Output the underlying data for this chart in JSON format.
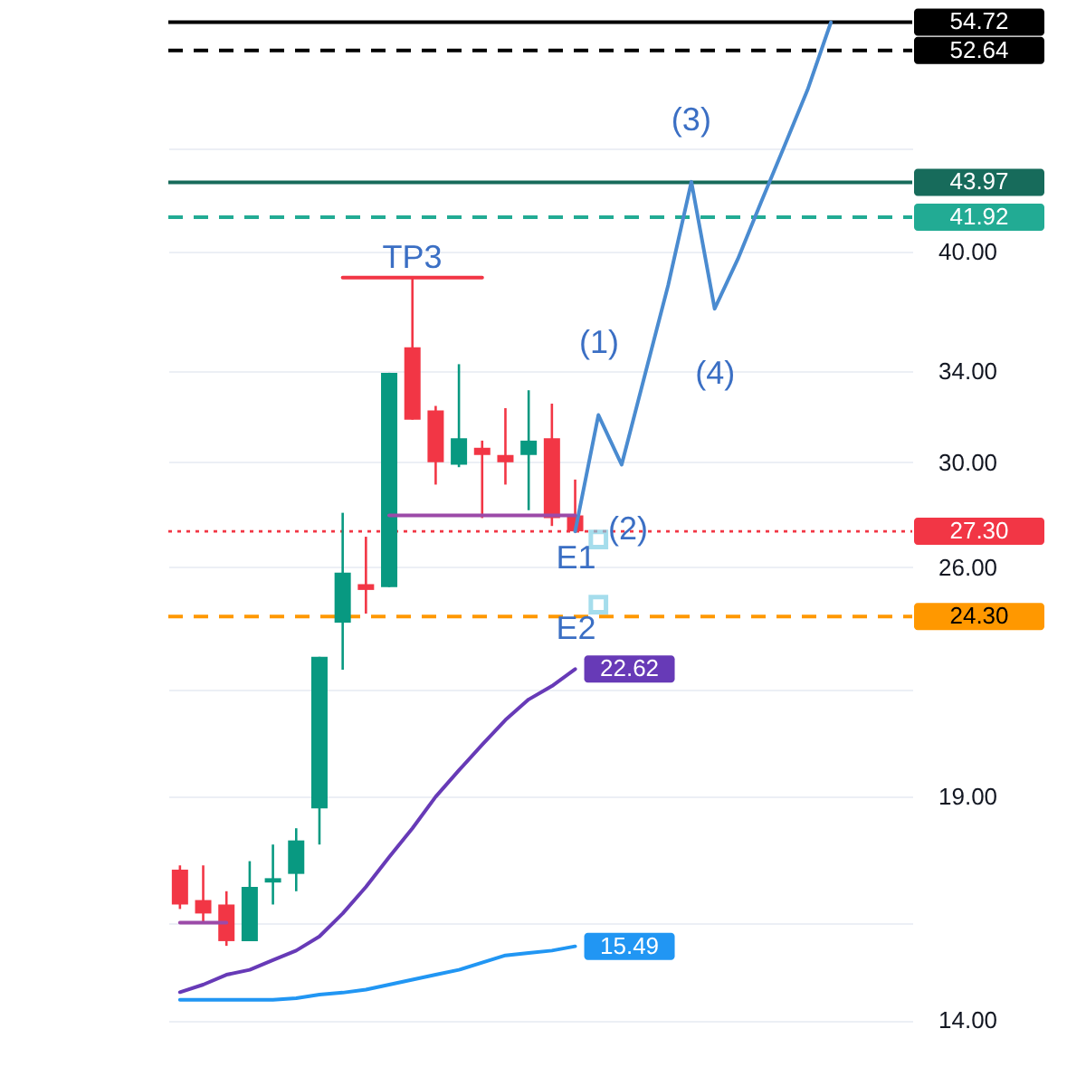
{
  "chart_data": {
    "type": "candlestick",
    "categories": [
      null,
      null,
      null,
      null,
      null,
      null,
      null,
      null,
      null,
      null,
      null,
      null,
      null,
      null,
      null,
      null,
      null,
      null,
      null,
      null,
      null,
      null,
      null,
      null,
      null,
      null,
      null,
      null,
      null,
      null,
      null,
      null
    ],
    "ohlc": [
      [
        17.2,
        17.3,
        16.3,
        16.4
      ],
      [
        16.5,
        17.3,
        16.0,
        16.2
      ],
      [
        16.4,
        16.7,
        15.5,
        15.6
      ],
      [
        15.6,
        17.4,
        15.6,
        16.8
      ],
      [
        16.9,
        17.8,
        16.4,
        17.0
      ],
      [
        17.1,
        18.2,
        16.7,
        17.9
      ],
      [
        18.7,
        23.0,
        17.8,
        23.0
      ],
      [
        24.1,
        28.0,
        22.6,
        25.8
      ],
      [
        25.4,
        27.1,
        24.4,
        25.2
      ],
      [
        25.3,
        33.9,
        25.3,
        33.9
      ],
      [
        35.1,
        38.6,
        31.8,
        31.8
      ],
      [
        32.2,
        32.4,
        29.1,
        30.0
      ],
      [
        29.9,
        34.3,
        29.8,
        31.0
      ],
      [
        30.6,
        30.9,
        27.8,
        30.3
      ],
      [
        30.3,
        32.3,
        29.1,
        30.0
      ],
      [
        30.3,
        33.1,
        28.1,
        30.9
      ],
      [
        31.0,
        32.5,
        27.5,
        27.8
      ],
      [
        27.9,
        29.3,
        27.3,
        27.3
      ],
      null,
      null,
      null,
      null,
      null,
      null,
      null,
      null,
      null,
      null,
      null,
      null,
      null,
      null
    ],
    "colors": [
      "#f23645",
      "#f23645",
      "#f23645",
      "#089981",
      "#089981",
      "#089981",
      "#089981",
      "#089981",
      "#f23645",
      "#089981",
      "#f23645",
      "#f23645",
      "#089981",
      "#f23645",
      "#f23645",
      "#089981",
      "#f23645",
      "#f23645",
      null,
      null,
      null,
      null,
      null,
      null,
      null,
      null,
      null,
      null,
      null,
      null,
      null,
      null
    ],
    "ylim": [
      12.8,
      56.4
    ],
    "yticks": [
      {
        "value": 14,
        "label": "14.00"
      },
      {
        "value": 16,
        "label": null
      },
      {
        "value": 19,
        "label": "19.00"
      },
      {
        "value": 22,
        "label": null
      },
      {
        "value": 26,
        "label": "26.00"
      },
      {
        "value": 30,
        "label": "30.00"
      },
      {
        "value": 34,
        "label": "34.00"
      },
      {
        "value": 40,
        "label": "40.00"
      },
      {
        "value": 46,
        "label": null
      }
    ],
    "log": true,
    "grid": "y",
    "tick_labels": "y",
    "series": [
      {
        "type": "line",
        "color": "#673ab7",
        "values": [
          14.55,
          14.7,
          14.9,
          15.0,
          15.2,
          15.4,
          15.7,
          16.2,
          16.8,
          17.5,
          18.2,
          19.0,
          19.7,
          20.4,
          21.1,
          21.7,
          22.1,
          22.62,
          null,
          null,
          null,
          null,
          null,
          null,
          null,
          null,
          null,
          null,
          null,
          null,
          null,
          null
        ],
        "value_labels": [
          null,
          null,
          null,
          null,
          null,
          null,
          null,
          null,
          null,
          null,
          null,
          null,
          null,
          null,
          null,
          null,
          null,
          "22.62",
          null,
          null,
          null,
          null,
          null,
          null,
          null,
          null,
          null,
          null,
          null,
          null,
          null,
          null
        ]
      },
      {
        "type": "line",
        "color": "#2196f3",
        "values": [
          14.4,
          14.4,
          14.4,
          14.4,
          14.4,
          14.43,
          14.5,
          14.54,
          14.6,
          14.7,
          14.8,
          14.9,
          15.0,
          15.15,
          15.3,
          15.35,
          15.4,
          15.49,
          null,
          null,
          null,
          null,
          null,
          null,
          null,
          null,
          null,
          null,
          null,
          null,
          null,
          null
        ],
        "value_labels": [
          null,
          null,
          null,
          null,
          null,
          null,
          null,
          null,
          null,
          null,
          null,
          null,
          null,
          null,
          null,
          null,
          null,
          "15.49",
          null,
          null,
          null,
          null,
          null,
          null,
          null,
          null,
          null,
          null,
          null,
          null,
          null,
          null
        ]
      },
      {
        "type": "line",
        "color": "#4a8bd0",
        "values": [
          null,
          null,
          null,
          null,
          null,
          null,
          null,
          null,
          null,
          null,
          null,
          null,
          null,
          null,
          null,
          null,
          null,
          27.3,
          32.0,
          29.9,
          33.8,
          38.2,
          44.0,
          37.0,
          39.6,
          42.8,
          46.2,
          49.9,
          54.7,
          null,
          null,
          null
        ]
      },
      {
        "type": "line",
        "color": "#f23645",
        "values": [
          null,
          null,
          null,
          null,
          null,
          null,
          null,
          38.6,
          38.6,
          38.6,
          38.6,
          38.6,
          38.6,
          38.6,
          null,
          null,
          null,
          null,
          null,
          null,
          null,
          null,
          null,
          null,
          null,
          null,
          null,
          null,
          null,
          null,
          null,
          null
        ]
      },
      {
        "type": "line",
        "color": "#9c4aa8",
        "values": [
          null,
          null,
          null,
          null,
          null,
          null,
          null,
          null,
          null,
          27.9,
          27.9,
          27.9,
          27.9,
          27.9,
          27.9,
          27.9,
          27.9,
          27.9,
          null,
          null,
          null,
          null,
          null,
          null,
          null,
          null,
          null,
          null,
          null,
          null,
          null,
          null
        ]
      },
      {
        "type": "line",
        "color": "#9c4aa8",
        "values": [
          16.0,
          16.0,
          16.0,
          null,
          null,
          null,
          null,
          null,
          null,
          null,
          null,
          null,
          null,
          null,
          null,
          null,
          null,
          null,
          null,
          null,
          null,
          null,
          null,
          null,
          null,
          null,
          null,
          null,
          null,
          null,
          null,
          null
        ]
      },
      {
        "type": "scatter",
        "color": "#80cfe5",
        "marker": "square",
        "values": [
          null,
          null,
          null,
          null,
          null,
          null,
          null,
          null,
          null,
          null,
          null,
          null,
          null,
          null,
          null,
          null,
          null,
          null,
          27.0,
          null,
          null,
          null,
          null,
          null,
          null,
          null,
          null,
          null,
          null,
          null,
          null,
          null
        ]
      },
      {
        "type": "scatter",
        "color": "#80cfe5",
        "marker": "square",
        "values": [
          null,
          null,
          null,
          null,
          null,
          null,
          null,
          null,
          null,
          null,
          null,
          null,
          null,
          null,
          null,
          null,
          null,
          null,
          24.7,
          null,
          null,
          null,
          null,
          null,
          null,
          null,
          null,
          null,
          null,
          null,
          null,
          null
        ]
      }
    ],
    "ref_lines": [
      {
        "axis": "y",
        "value": 54.72,
        "label": "54.72",
        "color": "#000000",
        "line_style": "solid"
      },
      {
        "axis": "y",
        "value": 52.64,
        "label": "52.64",
        "color": "#000000",
        "line_style": "dashed"
      },
      {
        "axis": "y",
        "value": 43.97,
        "label": "43.97",
        "color": "#176b5b",
        "line_style": "solid"
      },
      {
        "axis": "y",
        "value": 41.92,
        "label": "41.92",
        "color": "#22ab94",
        "line_style": "dashed"
      },
      {
        "axis": "y",
        "value": 27.3,
        "label": "27.30",
        "color": "#f23645",
        "line_style": "dotted"
      },
      {
        "axis": "y",
        "value": 24.3,
        "label": "24.30",
        "color": "#ff9800",
        "line_style": "dashed"
      }
    ],
    "annotations": [
      "TP3",
      "(1)",
      "(2)",
      "(3)",
      "(4)",
      "E1",
      "E2"
    ]
  }
}
